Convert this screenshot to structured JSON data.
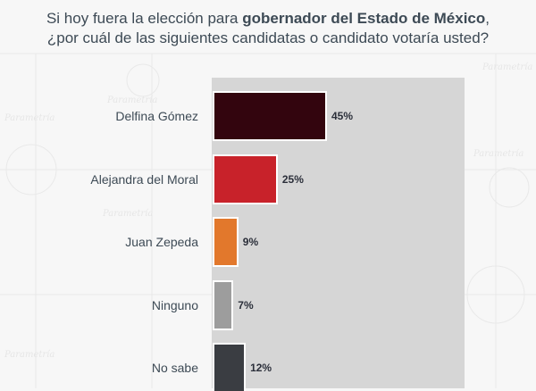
{
  "chart_data": {
    "type": "bar",
    "orientation": "horizontal",
    "title_parts": [
      {
        "text": "Si hoy fuera la elección para ",
        "bold": false
      },
      {
        "text": "gobernador del Estado de México",
        "bold": true
      },
      {
        "text": ",",
        "bold": false
      }
    ],
    "subtitle": "¿por cuál de las siguientes candidatas o candidato votaría usted?",
    "categories": [
      "Delfina Gómez",
      "Alejandra del Moral",
      "Juan Zepeda",
      "Ninguno",
      "No sabe"
    ],
    "values": [
      45,
      25,
      9,
      7,
      12
    ],
    "value_labels": [
      "45%",
      "25%",
      "9%",
      "7%",
      "12%"
    ],
    "colors": [
      "#33050e",
      "#c8222a",
      "#e2782c",
      "#9d9d9d",
      "#3a3d42"
    ],
    "xlim": [
      0,
      100
    ],
    "grid": false,
    "legend": "none"
  },
  "watermark_text": "Parametría"
}
